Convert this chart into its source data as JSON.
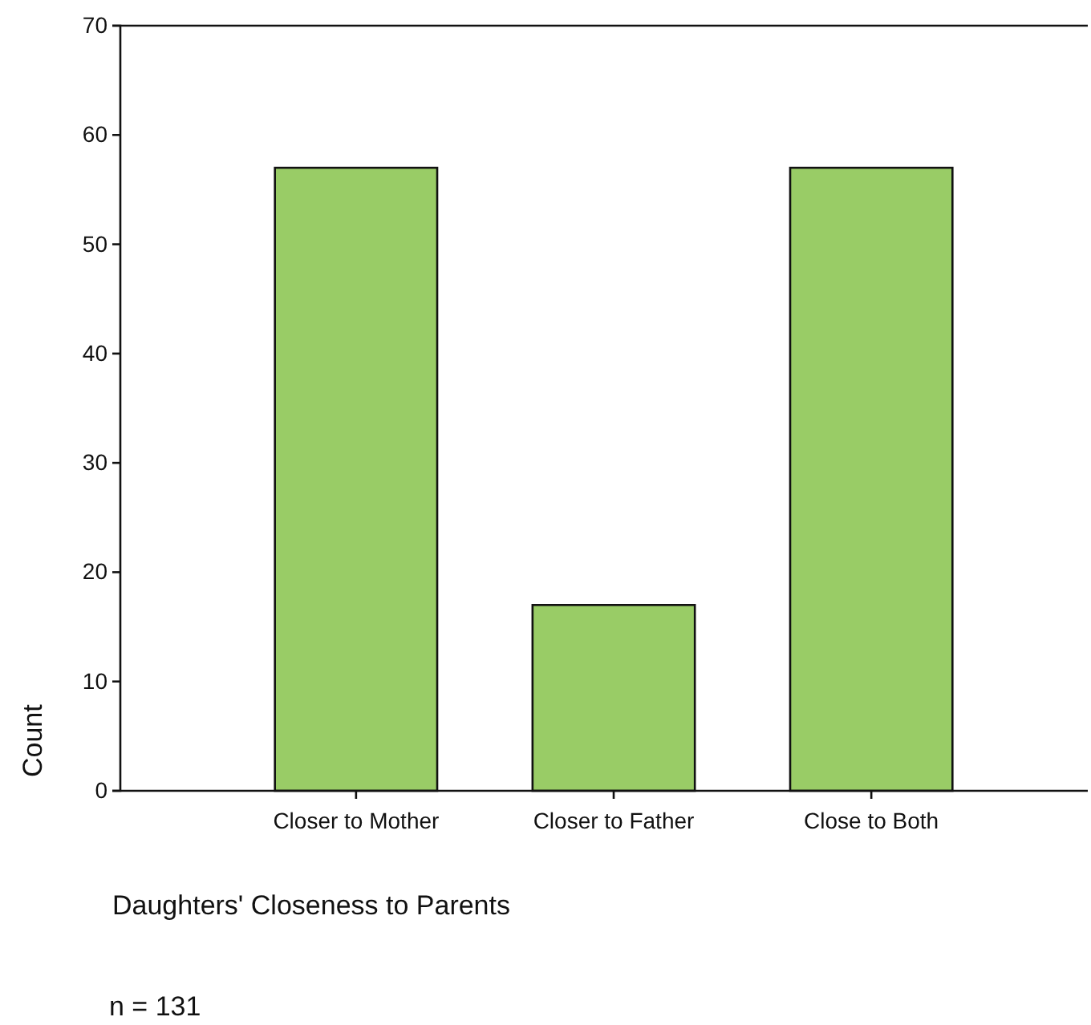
{
  "chart_data": {
    "type": "bar",
    "categories": [
      "Closer to Mother",
      "Closer to Father",
      "Close to Both"
    ],
    "values": [
      57,
      17,
      57
    ],
    "color": "#99cc66",
    "ylim": [
      0,
      70
    ],
    "yticks": [
      0,
      10,
      20,
      30,
      40,
      50,
      60,
      70
    ],
    "ylabel": "Count",
    "xlabel": "Daughters' Closeness to Parents",
    "annotations": [
      "n = 131"
    ],
    "grid": false
  }
}
